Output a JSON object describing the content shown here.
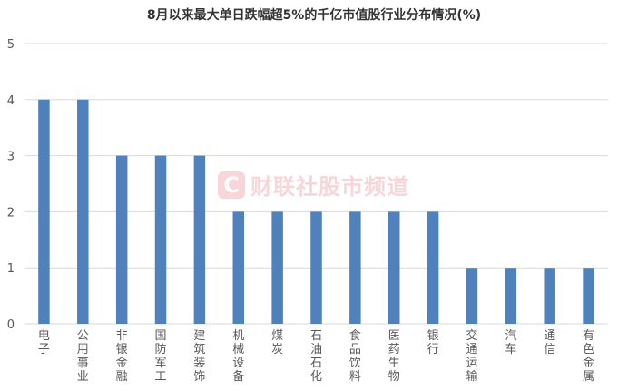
{
  "watermark": {
    "logo_letter": "C",
    "text": "财联社股市频道"
  },
  "colors": {
    "bar": "#4f81bd",
    "grid": "#d9d9d9",
    "axis_text": "#595959",
    "watermark": "#d0021b"
  },
  "chart_data": {
    "type": "bar",
    "title": "8月以来最大单日跌幅超5%的千亿市值股行业分布情况(%)",
    "categories": [
      "电子",
      "公用事业",
      "非银金融",
      "国防军工",
      "建筑装饰",
      "机械设备",
      "煤炭",
      "石油石化",
      "食品饮料",
      "医药生物",
      "银行",
      "交通运输",
      "汽车",
      "通信",
      "有色金属"
    ],
    "values": [
      4,
      4,
      3,
      3,
      3,
      2,
      2,
      2,
      2,
      2,
      2,
      1,
      1,
      1,
      1
    ],
    "yticks": [
      0,
      1,
      2,
      3,
      4,
      5
    ],
    "ylim": [
      0,
      5
    ],
    "grid": true,
    "legend": "none"
  }
}
